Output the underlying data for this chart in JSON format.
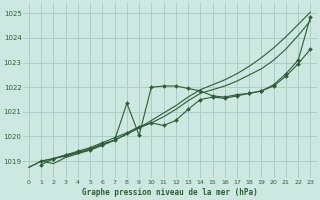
{
  "title": "Graphe pression niveau de la mer (hPa)",
  "bg_color": "#cce8e0",
  "grid_color": "#aacfc8",
  "line_color_dark": "#2d5e35",
  "xlim": [
    -0.5,
    23.5
  ],
  "ylim": [
    1018.3,
    1025.4
  ],
  "yticks": [
    1019,
    1020,
    1021,
    1022,
    1023,
    1024,
    1025
  ],
  "xticks": [
    0,
    1,
    2,
    3,
    4,
    5,
    6,
    7,
    8,
    9,
    10,
    11,
    12,
    13,
    14,
    15,
    16,
    17,
    18,
    19,
    20,
    21,
    22,
    23
  ],
  "line1_x": [
    0,
    1,
    2,
    3,
    4,
    5,
    6,
    7,
    8,
    9,
    10,
    11,
    12,
    13,
    14,
    15,
    16,
    17,
    18,
    19,
    20,
    21,
    22,
    23
  ],
  "line1_y": [
    1018.75,
    1019.0,
    1018.9,
    1019.15,
    1019.3,
    1019.45,
    1019.65,
    1019.85,
    1020.1,
    1020.35,
    1020.65,
    1020.95,
    1021.25,
    1021.6,
    1021.9,
    1022.1,
    1022.3,
    1022.55,
    1022.85,
    1023.2,
    1023.6,
    1024.05,
    1024.55,
    1025.05
  ],
  "line2_x": [
    0,
    1,
    2,
    3,
    4,
    5,
    6,
    7,
    8,
    9,
    10,
    11,
    12,
    13,
    14,
    15,
    16,
    17,
    18,
    19,
    20,
    21,
    22,
    23
  ],
  "line2_y": [
    1018.75,
    1019.0,
    1019.1,
    1019.2,
    1019.35,
    1019.5,
    1019.7,
    1019.85,
    1020.1,
    1020.35,
    1020.55,
    1020.8,
    1021.1,
    1021.45,
    1021.75,
    1021.9,
    1022.05,
    1022.25,
    1022.5,
    1022.75,
    1023.1,
    1023.55,
    1024.1,
    1024.7
  ],
  "line3_x": [
    1,
    2,
    3,
    4,
    5,
    6,
    7,
    8,
    9,
    10,
    11,
    12,
    13,
    14,
    15,
    16,
    17,
    18,
    19,
    20,
    21,
    22,
    23
  ],
  "line3_y": [
    1019.0,
    1019.1,
    1019.25,
    1019.35,
    1019.45,
    1019.65,
    1019.85,
    1021.35,
    1020.05,
    1022.0,
    1022.05,
    1022.05,
    1021.95,
    1021.85,
    1021.65,
    1021.6,
    1021.7,
    1021.75,
    1021.85,
    1022.05,
    1022.45,
    1022.95,
    1023.55
  ],
  "line4_x": [
    1,
    2,
    3,
    4,
    5,
    6,
    7,
    8,
    9,
    10,
    11,
    12,
    13,
    14,
    15,
    16,
    17,
    18,
    19,
    20,
    21,
    22,
    23
  ],
  "line4_y": [
    1018.85,
    1019.1,
    1019.25,
    1019.4,
    1019.55,
    1019.75,
    1019.95,
    1020.15,
    1020.4,
    1020.55,
    1020.45,
    1020.65,
    1021.1,
    1021.5,
    1021.6,
    1021.55,
    1021.65,
    1021.75,
    1021.85,
    1022.1,
    1022.55,
    1023.1,
    1024.85
  ]
}
